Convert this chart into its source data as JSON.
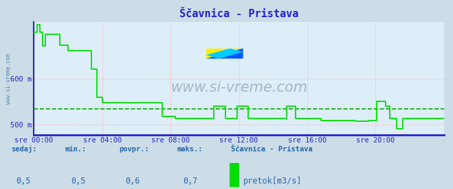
{
  "title": "Ščavnica - Pristava",
  "bg_color": "#ccdde8",
  "plot_bg_color": "#ddeef8",
  "line_color": "#00dd00",
  "avg_line_color": "#00aa00",
  "axis_color": "#2222cc",
  "grid_color_x": "#ffaaaa",
  "grid_color_y": "#ffaaaa",
  "ylabel": "m",
  "xlabel_ticks": [
    "sre 00:00",
    "sre 04:00",
    "sre 08:00",
    "sre 12:00",
    "sre 16:00",
    "sre 20:00"
  ],
  "xtick_positions": [
    0,
    4,
    8,
    12,
    16,
    20
  ],
  "ytick_labels": [
    "500 m",
    "600 m"
  ],
  "ytick_vals": [
    500,
    600
  ],
  "ymin": 478,
  "ymax": 722,
  "xmin": 0,
  "xmax": 24,
  "sedaj": "0,5",
  "min_val": "0,5",
  "povpr": "0,6",
  "maks": "0,7",
  "legend_label": "pretok[m3/s]",
  "legend_series": "Ščavnica - Pristava",
  "watermark": "www.si-vreme.com",
  "title_color": "#2222cc",
  "label_color": "#2266aa",
  "footer_label_color": "#2266aa",
  "avg_value": 535,
  "arrow_color": "#880000",
  "logo_yellow": "#ffee00",
  "logo_blue": "#0055ff",
  "logo_cyan": "#00ccff"
}
